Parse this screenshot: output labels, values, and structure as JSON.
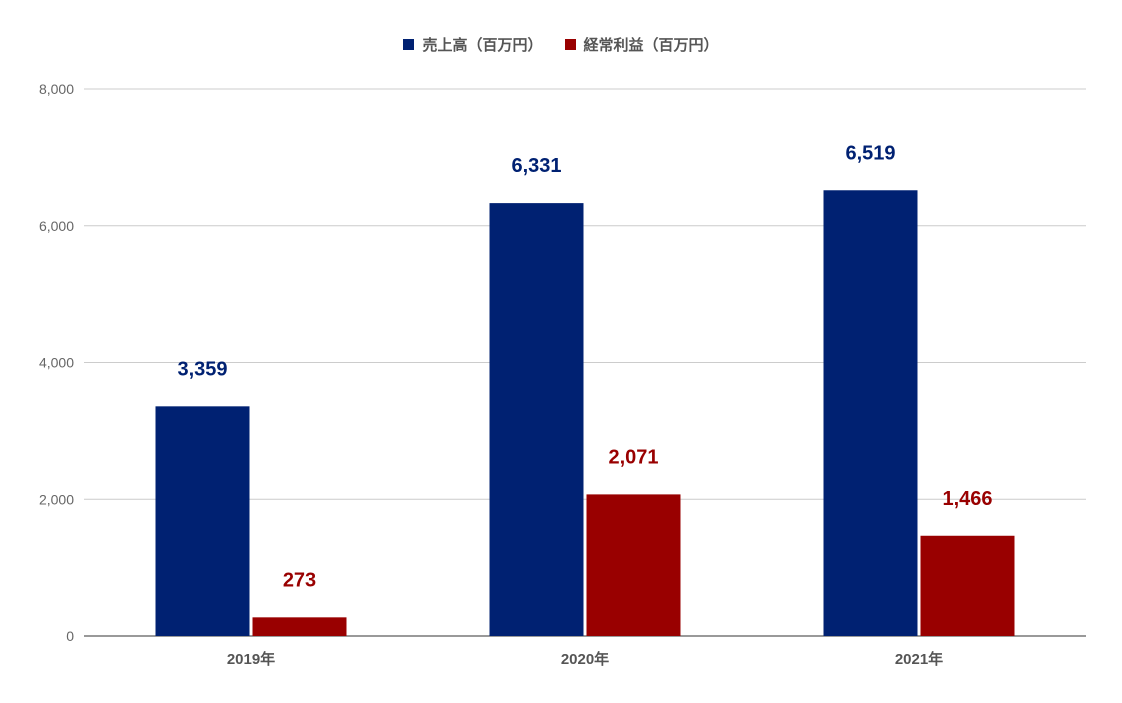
{
  "chart_data": {
    "type": "bar",
    "categories": [
      "2019年",
      "2020年",
      "2021年"
    ],
    "series": [
      {
        "name": "売上高（百万円）",
        "values": [
          3359,
          6331,
          6519
        ],
        "labels": [
          "3,359",
          "6,331",
          "6,519"
        ],
        "color": "#002172"
      },
      {
        "name": "経常利益（百万円）",
        "values": [
          273,
          2071,
          1466
        ],
        "labels": [
          "273",
          "2,071",
          "1,466"
        ],
        "color": "#990000"
      }
    ],
    "ylim": [
      0,
      8000
    ],
    "yticks": [
      0,
      2000,
      4000,
      6000,
      8000
    ],
    "ytick_labels": [
      "0",
      "2,000",
      "4,000",
      "6,000",
      "8,000"
    ],
    "grid": true,
    "legend_position": "top-center",
    "gridline_color": "#cccccc",
    "axis_color": "#333333"
  }
}
